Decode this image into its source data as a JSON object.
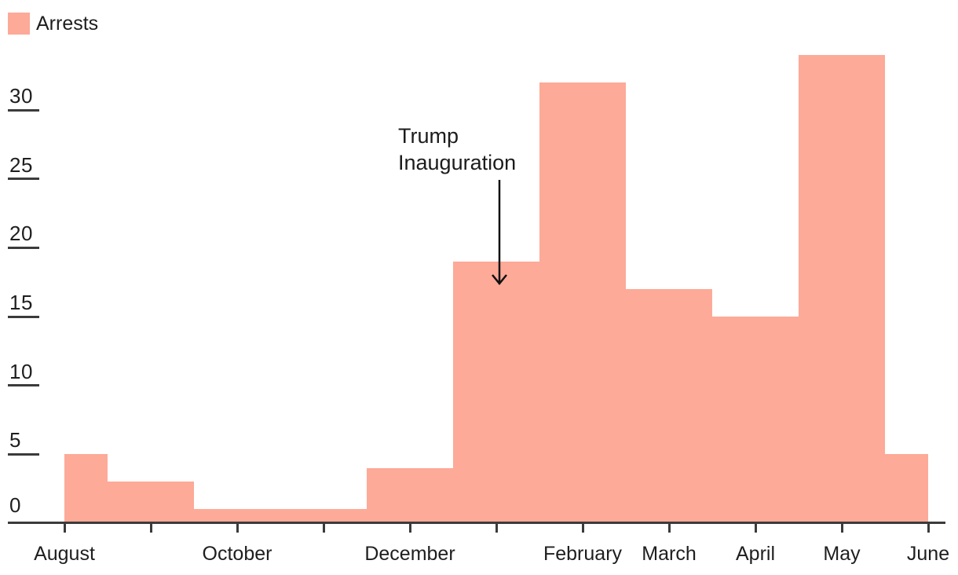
{
  "legend": {
    "label": "Arrests",
    "swatch_color": "#FDAA98"
  },
  "annotation": {
    "line1": "Trump",
    "line2": "Inauguration",
    "arrow_points_to_month": "mid-January"
  },
  "colors": {
    "bar": "#FDAA98",
    "axis": "#3b3b3b",
    "text": "#1e1e1e",
    "arrow": "#111111"
  },
  "chart_data": {
    "type": "bar",
    "subtype": "histogram",
    "title": "",
    "xlabel": "",
    "ylabel": "",
    "series_name": "Arrests",
    "ylim": [
      0,
      35
    ],
    "y_ticks": [
      0,
      5,
      10,
      15,
      20,
      25,
      30
    ],
    "x_tick_month_positions": [
      0,
      1,
      2,
      3,
      4,
      5,
      6,
      7,
      8,
      9,
      10
    ],
    "x_labels": [
      {
        "label": "August",
        "month": 0
      },
      {
        "label": "October",
        "month": 2
      },
      {
        "label": "December",
        "month": 4
      },
      {
        "label": "February",
        "month": 6
      },
      {
        "label": "March",
        "month": 7
      },
      {
        "label": "April",
        "month": 8
      },
      {
        "label": "May",
        "month": 9
      },
      {
        "label": "June",
        "month": 10
      }
    ],
    "segments": [
      {
        "m0": 0.0,
        "m1": 0.5,
        "from": "Aug 1",
        "to": "Aug 15",
        "value": 5
      },
      {
        "m0": 0.5,
        "m1": 1.5,
        "from": "Aug 16",
        "to": "Sep 15",
        "value": 3
      },
      {
        "m0": 1.5,
        "m1": 3.5,
        "from": "Sep 16",
        "to": "Nov 15",
        "value": 1
      },
      {
        "m0": 3.5,
        "m1": 4.5,
        "from": "Nov 16",
        "to": "Dec 15",
        "value": 4
      },
      {
        "m0": 4.5,
        "m1": 5.5,
        "from": "Dec 16",
        "to": "Jan 15",
        "value": 19
      },
      {
        "m0": 5.5,
        "m1": 6.5,
        "from": "Jan 16",
        "to": "Feb 15",
        "value": 32
      },
      {
        "m0": 6.5,
        "m1": 7.5,
        "from": "Feb 16",
        "to": "Mar 15",
        "value": 17
      },
      {
        "m0": 7.5,
        "m1": 8.5,
        "from": "Mar 16",
        "to": "Apr 15",
        "value": 15
      },
      {
        "m0": 8.5,
        "m1": 9.5,
        "from": "Apr 16",
        "to": "May 15",
        "value": 34
      },
      {
        "m0": 9.5,
        "m1": 10.0,
        "from": "May 16",
        "to": "May 31",
        "value": 5
      }
    ],
    "legend_entries": [
      "Arrests"
    ],
    "grid": false,
    "legend_position": "top-left"
  }
}
